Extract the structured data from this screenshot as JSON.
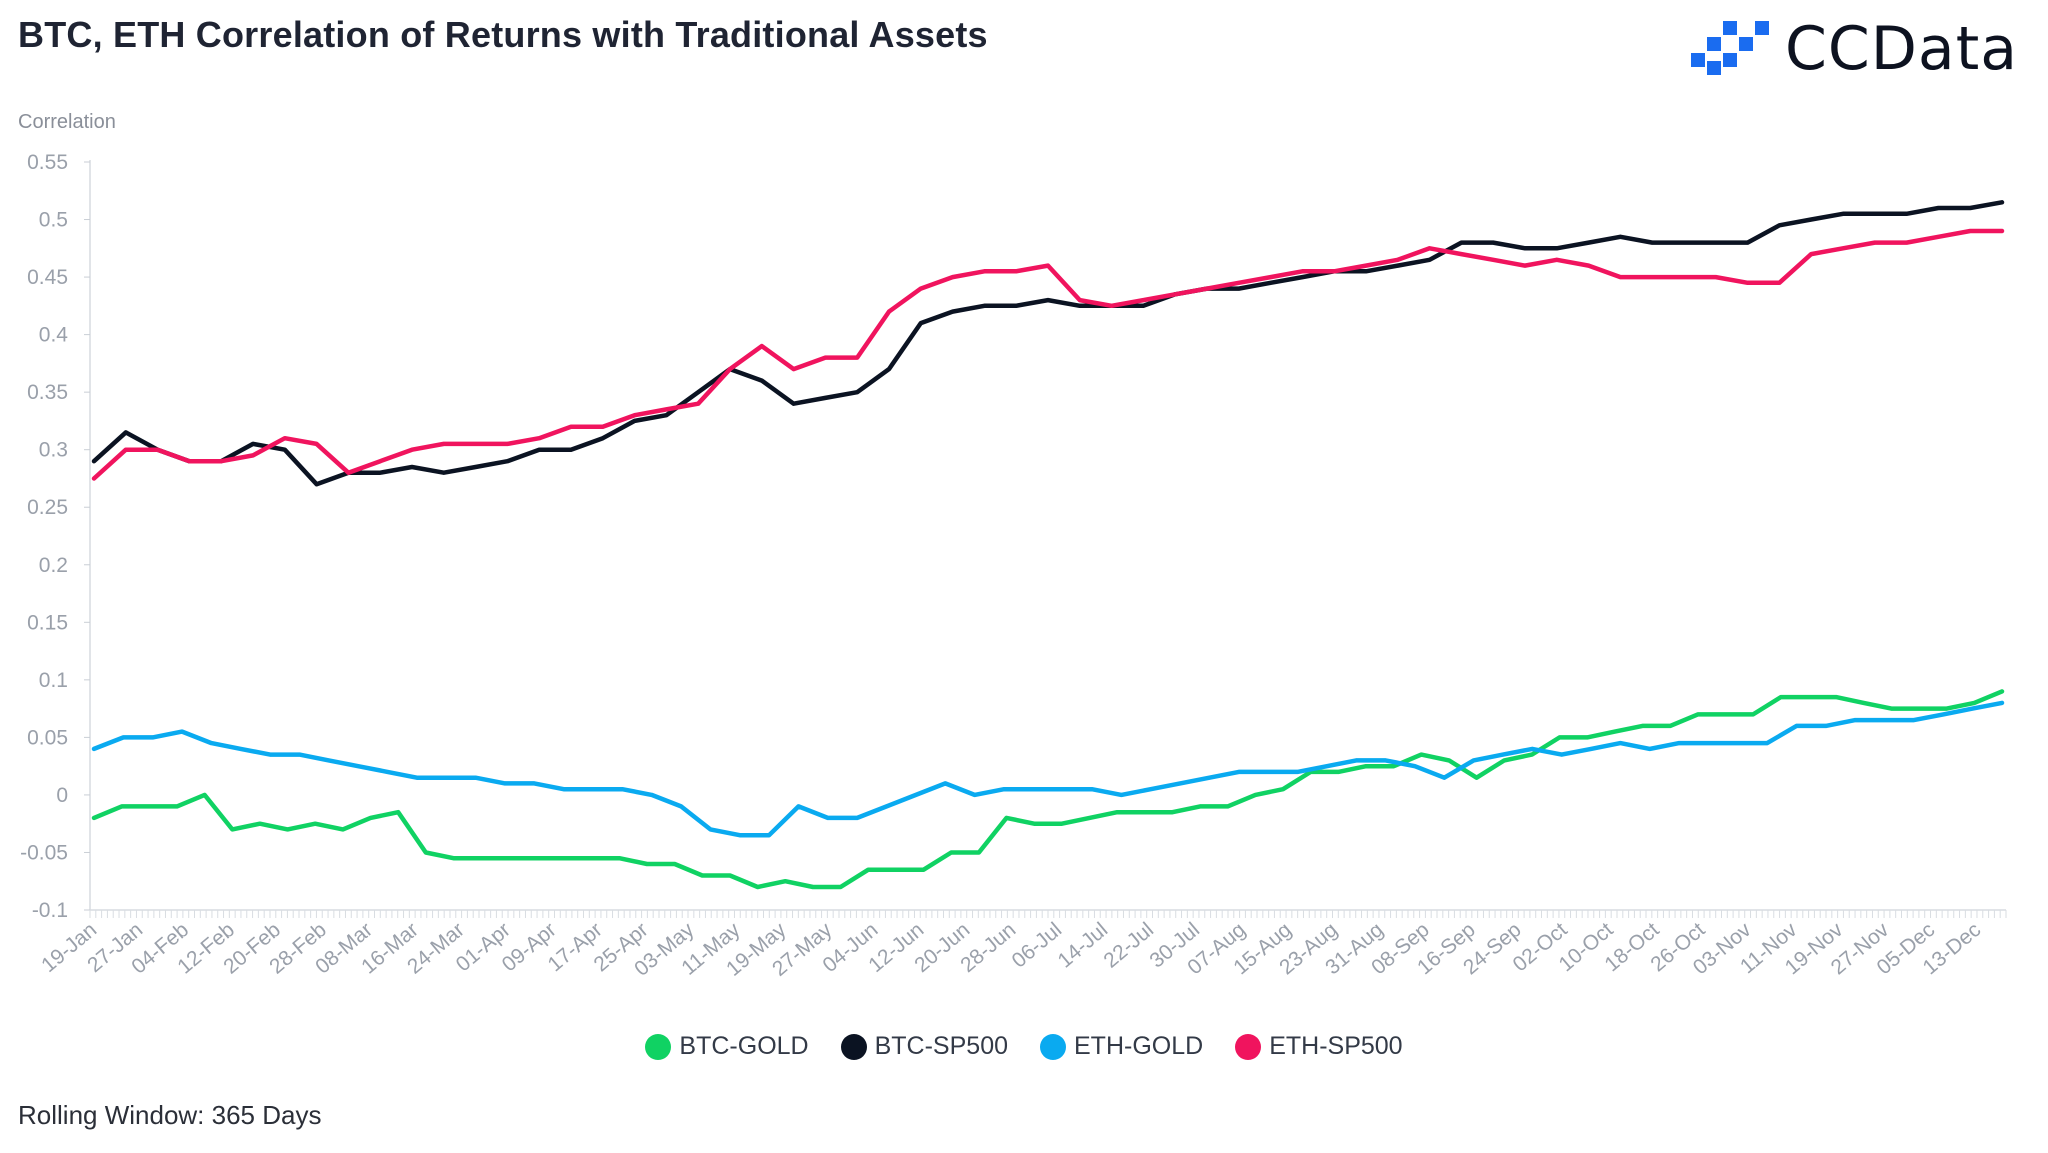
{
  "header": {
    "title": "BTC, ETH Correlation of Returns with Traditional Assets"
  },
  "logo": {
    "text": "CCData",
    "color": "#1a6cf0"
  },
  "footnote": "Rolling Window: 365 Days",
  "chart_data": {
    "type": "line",
    "title": "BTC, ETH Correlation of Returns with Traditional Assets",
    "ylabel": "Correlation",
    "xlabel": "",
    "ylim": [
      -0.1,
      0.55
    ],
    "yticks": [
      -0.1,
      -0.05,
      0,
      0.05,
      0.1,
      0.15,
      0.2,
      0.25,
      0.3,
      0.35,
      0.4,
      0.45,
      0.5,
      0.55
    ],
    "ytick_labels": [
      "-0.1",
      "-0.05",
      "0",
      "0.05",
      "0.1",
      "0.15",
      "0.2",
      "0.25",
      "0.3",
      "0.35",
      "0.4",
      "0.45",
      "0.5",
      "0.55"
    ],
    "x_tick_labels": [
      "19-Jan",
      "27-Jan",
      "04-Feb",
      "12-Feb",
      "20-Feb",
      "28-Feb",
      "08-Mar",
      "16-Mar",
      "24-Mar",
      "01-Apr",
      "09-Apr",
      "17-Apr",
      "25-Apr",
      "03-May",
      "11-May",
      "19-May",
      "27-May",
      "04-Jun",
      "12-Jun",
      "20-Jun",
      "28-Jun",
      "06-Jul",
      "14-Jul",
      "22-Jul",
      "30-Jul",
      "07-Aug",
      "15-Aug",
      "23-Aug",
      "31-Aug",
      "08-Sep",
      "16-Sep",
      "24-Sep",
      "02-Oct",
      "10-Oct",
      "18-Oct",
      "26-Oct",
      "03-Nov",
      "11-Nov",
      "19-Nov",
      "27-Nov",
      "05-Dec",
      "13-Dec"
    ],
    "grid": false,
    "legend_position": "bottom",
    "series": [
      {
        "name": "BTC-GOLD",
        "color": "#10d263",
        "values": [
          -0.02,
          -0.01,
          -0.01,
          -0.01,
          0.0,
          -0.03,
          -0.025,
          -0.03,
          -0.025,
          -0.03,
          -0.02,
          -0.015,
          -0.05,
          -0.055,
          -0.055,
          -0.055,
          -0.055,
          -0.055,
          -0.055,
          -0.055,
          -0.06,
          -0.06,
          -0.07,
          -0.07,
          -0.08,
          -0.075,
          -0.08,
          -0.08,
          -0.065,
          -0.065,
          -0.065,
          -0.05,
          -0.05,
          -0.02,
          -0.025,
          -0.025,
          -0.02,
          -0.015,
          -0.015,
          -0.015,
          -0.01,
          -0.01,
          0.0,
          0.005,
          0.02,
          0.02,
          0.025,
          0.025,
          0.035,
          0.03,
          0.015,
          0.03,
          0.035,
          0.05,
          0.05,
          0.055,
          0.06,
          0.06,
          0.07,
          0.07,
          0.07,
          0.085,
          0.085,
          0.085,
          0.08,
          0.075,
          0.075,
          0.075,
          0.08,
          0.09
        ]
      },
      {
        "name": "BTC-SP500",
        "color": "#0b1322",
        "values": [
          0.29,
          0.315,
          0.3,
          0.29,
          0.29,
          0.305,
          0.3,
          0.27,
          0.28,
          0.28,
          0.285,
          0.28,
          0.285,
          0.29,
          0.3,
          0.3,
          0.31,
          0.325,
          0.33,
          0.35,
          0.37,
          0.36,
          0.34,
          0.345,
          0.35,
          0.37,
          0.41,
          0.42,
          0.425,
          0.425,
          0.43,
          0.425,
          0.425,
          0.425,
          0.435,
          0.44,
          0.44,
          0.445,
          0.45,
          0.455,
          0.455,
          0.46,
          0.465,
          0.48,
          0.48,
          0.475,
          0.475,
          0.48,
          0.485,
          0.48,
          0.48,
          0.48,
          0.48,
          0.495,
          0.5,
          0.505,
          0.505,
          0.505,
          0.51,
          0.51,
          0.515
        ]
      },
      {
        "name": "ETH-GOLD",
        "color": "#0aaaf0",
        "values": [
          0.04,
          0.05,
          0.05,
          0.055,
          0.045,
          0.04,
          0.035,
          0.035,
          0.03,
          0.025,
          0.02,
          0.015,
          0.015,
          0.015,
          0.01,
          0.01,
          0.005,
          0.005,
          0.005,
          0.0,
          -0.01,
          -0.03,
          -0.035,
          -0.035,
          -0.01,
          -0.02,
          -0.02,
          -0.01,
          0.0,
          0.01,
          0.0,
          0.005,
          0.005,
          0.005,
          0.005,
          0.0,
          0.005,
          0.01,
          0.015,
          0.02,
          0.02,
          0.02,
          0.025,
          0.03,
          0.03,
          0.025,
          0.015,
          0.03,
          0.035,
          0.04,
          0.035,
          0.04,
          0.045,
          0.04,
          0.045,
          0.045,
          0.045,
          0.045,
          0.06,
          0.06,
          0.065,
          0.065,
          0.065,
          0.07,
          0.075,
          0.08
        ]
      },
      {
        "name": "ETH-SP500",
        "color": "#f0145e",
        "values": [
          0.275,
          0.3,
          0.3,
          0.29,
          0.29,
          0.295,
          0.31,
          0.305,
          0.28,
          0.29,
          0.3,
          0.305,
          0.305,
          0.305,
          0.31,
          0.32,
          0.32,
          0.33,
          0.335,
          0.34,
          0.37,
          0.39,
          0.37,
          0.38,
          0.38,
          0.42,
          0.44,
          0.45,
          0.455,
          0.455,
          0.46,
          0.43,
          0.425,
          0.43,
          0.435,
          0.44,
          0.445,
          0.45,
          0.455,
          0.455,
          0.46,
          0.465,
          0.475,
          0.47,
          0.465,
          0.46,
          0.465,
          0.46,
          0.45,
          0.45,
          0.45,
          0.45,
          0.445,
          0.445,
          0.47,
          0.475,
          0.48,
          0.48,
          0.485,
          0.49,
          0.49
        ]
      }
    ]
  }
}
